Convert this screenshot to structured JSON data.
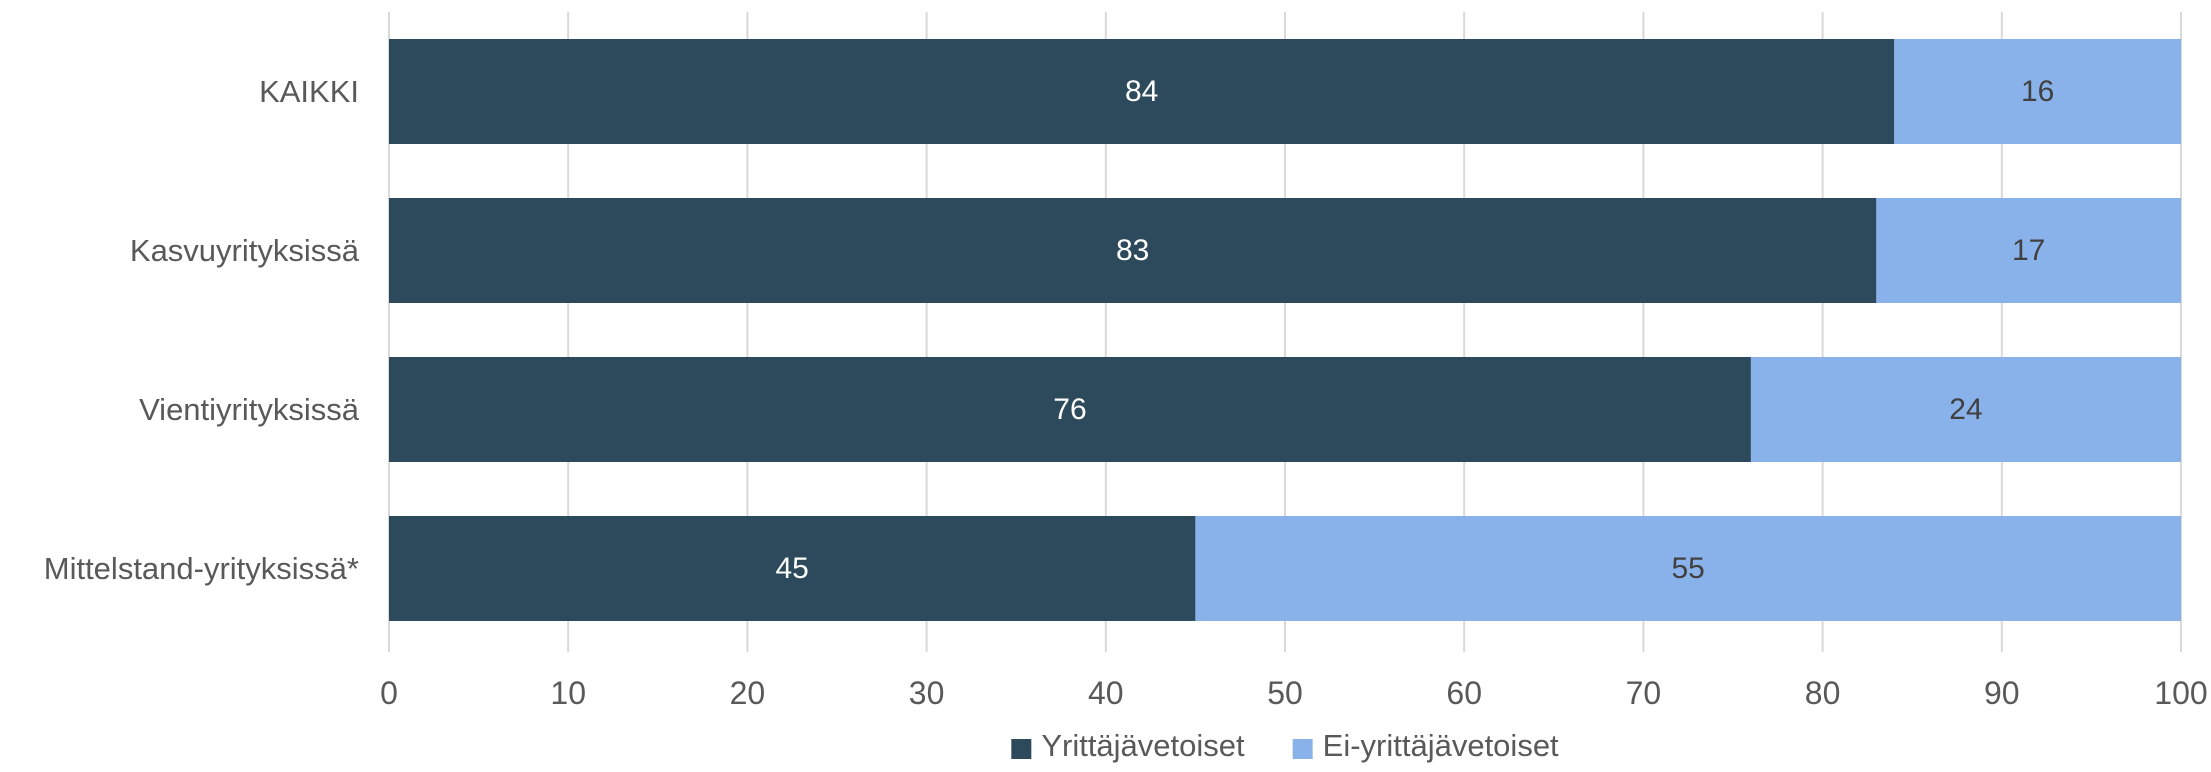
{
  "chart_data": {
    "type": "bar",
    "orientation": "horizontal",
    "stacked": true,
    "categories": [
      "KAIKKI",
      "Kasvuyrityksissä",
      "Vientiyrityksissä",
      "Mittelstand-yrityksissä*"
    ],
    "series": [
      {
        "name": "Yrittäjävetoiset",
        "values": [
          84,
          83,
          76,
          45
        ],
        "color": "#2d4a5c",
        "label_color": "#ffffff"
      },
      {
        "name": "Ei-yrittäjävetoiset",
        "values": [
          16,
          17,
          24,
          55
        ],
        "color": "#8ab2ea",
        "label_color": "#404040"
      }
    ],
    "xlim": [
      0,
      100
    ],
    "xticks": [
      0,
      10,
      20,
      30,
      40,
      50,
      60,
      70,
      80,
      90,
      100
    ],
    "grid": true,
    "gridline_color": "#d9d9d9",
    "legend": "bottom"
  }
}
